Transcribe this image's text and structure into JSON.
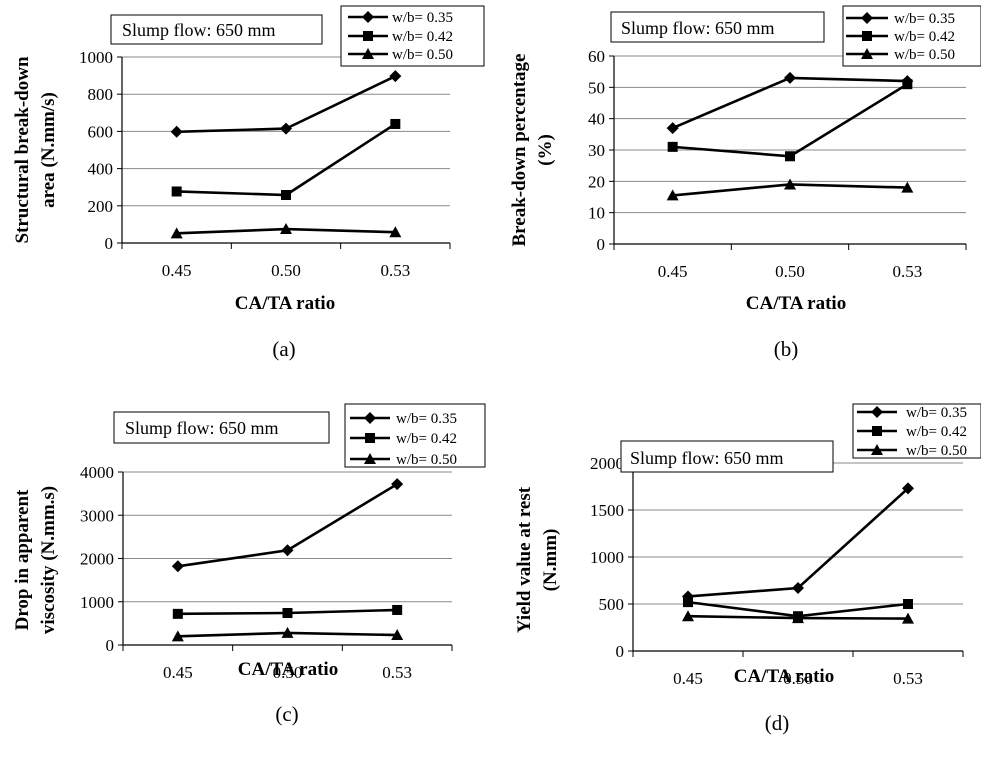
{
  "chart_data": [
    {
      "type": "line",
      "panel_label": "(a)",
      "annotation": "Slump flow: 650 mm",
      "xlabel": "CA/TA ratio",
      "ylabel": [
        "Structural break-down",
        "area (N.mm/s)"
      ],
      "categories": [
        "0.45",
        "0.50",
        "0.53"
      ],
      "ylim": [
        0,
        1000
      ],
      "yticks": [
        "0",
        "200",
        "400",
        "600",
        "800",
        "1000"
      ],
      "grid": "horizontal",
      "legend_position": "top-right",
      "series": [
        {
          "name": "w/b= 0.35",
          "marker": "diamond",
          "values": [
            598,
            615,
            897
          ]
        },
        {
          "name": "w/b= 0.42",
          "marker": "square",
          "values": [
            277,
            258,
            640
          ]
        },
        {
          "name": "w/b= 0.50",
          "marker": "triangle",
          "values": [
            52,
            75,
            58
          ]
        }
      ]
    },
    {
      "type": "line",
      "panel_label": "(b)",
      "annotation": "Slump flow: 650 mm",
      "xlabel": "CA/TA ratio",
      "ylabel": [
        "Break-down percentage",
        "(%)"
      ],
      "categories": [
        "0.45",
        "0.50",
        "0.53"
      ],
      "ylim": [
        0,
        60
      ],
      "yticks": [
        "0",
        "10",
        "20",
        "30",
        "40",
        "50",
        "60"
      ],
      "grid": "horizontal",
      "legend_position": "top-right",
      "series": [
        {
          "name": "w/b= 0.35",
          "marker": "diamond",
          "values": [
            37,
            53,
            52
          ]
        },
        {
          "name": "w/b= 0.42",
          "marker": "square",
          "values": [
            31,
            28,
            51
          ]
        },
        {
          "name": "w/b= 0.50",
          "marker": "triangle",
          "values": [
            15.5,
            19,
            18
          ]
        }
      ]
    },
    {
      "type": "line",
      "panel_label": "(c)",
      "annotation": "Slump flow: 650 mm",
      "xlabel": "CA/TA ratio",
      "ylabel": [
        "Drop in apparent",
        "viscosity (N.mm.s)"
      ],
      "categories": [
        "0.45",
        "0.50",
        "0.53"
      ],
      "ylim": [
        0,
        4000
      ],
      "yticks": [
        "0",
        "1000",
        "2000",
        "3000",
        "4000"
      ],
      "grid": "horizontal",
      "legend_position": "top-right",
      "series": [
        {
          "name": "w/b= 0.35",
          "marker": "diamond",
          "values": [
            1820,
            2190,
            3720
          ]
        },
        {
          "name": "w/b= 0.42",
          "marker": "square",
          "values": [
            720,
            740,
            810
          ]
        },
        {
          "name": "w/b= 0.50",
          "marker": "triangle",
          "values": [
            200,
            280,
            230
          ]
        }
      ]
    },
    {
      "type": "line",
      "panel_label": "(d)",
      "annotation": "Slump flow: 650 mm",
      "xlabel": "CA/TA ratio",
      "ylabel": [
        "Yield value at rest",
        "(N.mm)"
      ],
      "categories": [
        "0.45",
        "0.50",
        "0.53"
      ],
      "ylim": [
        0,
        2000
      ],
      "yticks": [
        "0",
        "500",
        "1000",
        "1500",
        "2000"
      ],
      "grid": "horizontal",
      "legend_position": "top-right",
      "series": [
        {
          "name": "w/b= 0.35",
          "marker": "diamond",
          "values": [
            580,
            670,
            1730
          ]
        },
        {
          "name": "w/b= 0.42",
          "marker": "square",
          "values": [
            520,
            370,
            500
          ]
        },
        {
          "name": "w/b= 0.50",
          "marker": "triangle",
          "values": [
            370,
            350,
            345
          ]
        }
      ]
    }
  ]
}
